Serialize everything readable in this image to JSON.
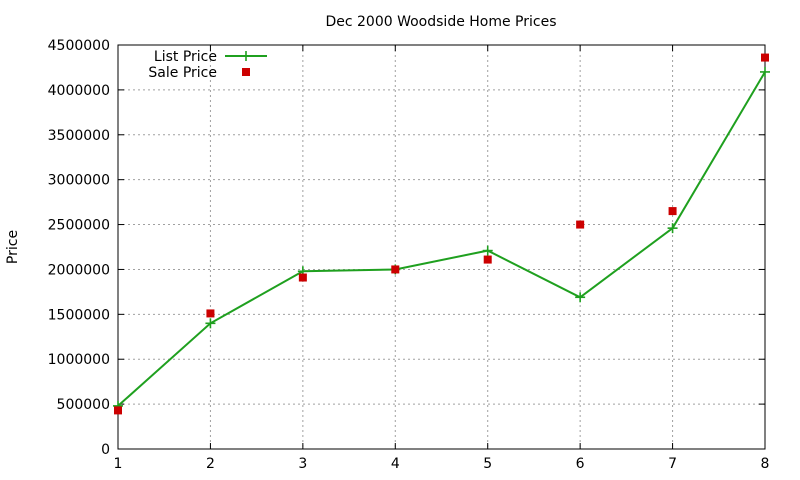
{
  "chart_data": {
    "type": "line",
    "title": "Dec 2000 Woodside Home Prices",
    "xlabel": "",
    "ylabel": "Price",
    "x": [
      1,
      2,
      3,
      4,
      5,
      6,
      7,
      8
    ],
    "xlim": [
      1,
      8
    ],
    "ylim": [
      0,
      4500000
    ],
    "xticks": [
      "1",
      "2",
      "3",
      "4",
      "5",
      "6",
      "7",
      "8"
    ],
    "yticks": [
      "0",
      "500000",
      "1000000",
      "1500000",
      "2000000",
      "2500000",
      "3000000",
      "3500000",
      "4000000",
      "4500000"
    ],
    "grid": true,
    "legend_position": "top-left",
    "series": [
      {
        "name": "List Price",
        "style": "line+cross",
        "color": "#1fa01f",
        "values": [
          480000,
          1400000,
          1980000,
          2000000,
          2210000,
          1690000,
          2460000,
          4200000
        ]
      },
      {
        "name": "Sale Price",
        "style": "square-points",
        "color": "#cc0000",
        "values": [
          430000,
          1510000,
          1910000,
          2000000,
          2110000,
          2500000,
          2650000,
          4360000
        ]
      }
    ]
  }
}
